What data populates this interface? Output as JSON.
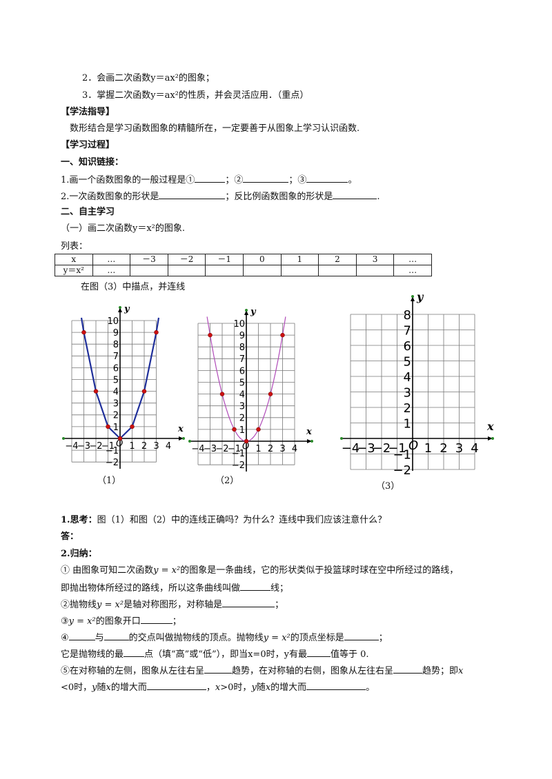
{
  "objectives": [
    "2．会画二次函数y＝ax²的图象；",
    "3．掌握二次函数y＝ax²的性质，并会灵活应用．（重点）"
  ],
  "study_method": {
    "heading": "【学法指导】",
    "text": "数形结合是学习函数图象的精髓所在，一定要善于从图象上学习认识函数."
  },
  "process": {
    "heading": "【学习过程】"
  },
  "part1": {
    "heading": "一、知识链接：",
    "q1_a": "1.画一个函数图象的一般过程是①",
    "q1_b": "；②",
    "q1_c": "；③",
    "q1_d": "。",
    "q2_a": "2.一次函数图象的形状是",
    "q2_b": "；反比例函数图象的形状是",
    "q2_c": "."
  },
  "part2": {
    "heading": "二、自主学习",
    "sub": "（一）画二次函数y＝x²的图象.",
    "table_label": "列表：",
    "table_header": [
      "x",
      "…",
      "－3",
      "－2",
      "－1",
      "0",
      "1",
      "2",
      "3",
      "…"
    ],
    "table_row2": [
      "y＝x²",
      "…",
      "",
      "",
      "",
      "",
      "",
      "",
      "",
      "…"
    ],
    "instruction": "在图（3）中描点，并连线"
  },
  "graphs": {
    "captions": [
      "（1）",
      "（2）",
      "（3）"
    ],
    "y_label": "y",
    "x_label": "x",
    "origin_label": "O",
    "small_x_ticks": [
      "−4",
      "−3",
      "−2",
      "−1",
      "1",
      "2",
      "3",
      "4"
    ],
    "small_y_ticks": [
      "10",
      "9",
      "8",
      "7",
      "6",
      "5",
      "4",
      "3",
      "2",
      "1",
      "−1",
      "−2"
    ],
    "large_x_ticks": [
      "−4",
      "−3",
      "−2",
      "−1",
      "1",
      "2",
      "3",
      "4"
    ],
    "large_y_ticks": [
      "8",
      "7",
      "6",
      "5",
      "4",
      "3",
      "2",
      "1",
      "−1",
      "−2"
    ]
  },
  "chart_data": [
    {
      "type": "line",
      "x": [
        -3.2,
        -3,
        -2,
        -1,
        0,
        1,
        2,
        3,
        3.2
      ],
      "y": [
        10.24,
        9,
        4,
        1,
        0,
        1,
        4,
        9,
        10.24
      ],
      "points": [
        [
          -3,
          9
        ],
        [
          -2,
          4
        ],
        [
          -1,
          1
        ],
        [
          0,
          0
        ],
        [
          1,
          1
        ],
        [
          2,
          4
        ],
        [
          3,
          9
        ]
      ],
      "xlim": [
        -4,
        4
      ],
      "ylim": [
        -2,
        10
      ],
      "grid": true,
      "colors": {
        "line": "#1f2f9a",
        "points": "#cc1111"
      }
    },
    {
      "type": "line",
      "points": [
        [
          -3,
          9
        ],
        [
          -2,
          4
        ],
        [
          -1,
          1
        ],
        [
          0,
          0
        ],
        [
          1,
          1
        ],
        [
          2,
          4
        ],
        [
          3,
          9
        ]
      ],
      "curve": "y=x^2",
      "xlim": [
        -4,
        4
      ],
      "ylim": [
        -2,
        10
      ],
      "grid": true,
      "colors": {
        "line": "#b04ab8",
        "points": "#cc1111"
      }
    },
    {
      "type": "scatter",
      "points": [],
      "xlim": [
        -4,
        4
      ],
      "ylim": [
        -2,
        8
      ],
      "grid": true
    }
  ],
  "think": {
    "q": "1.思考：",
    "q_text": "图（1）和图（2）中的连线正确吗？为什么？连线中我们应该注意什么？",
    "answer": "答："
  },
  "summary": {
    "heading": "2.归纳：",
    "l1_a": "① 由图象可知二次函数",
    "l1_b": "的图象是一条曲线，它的形状类似于投篮球时球在空中所经过的路线，",
    "l2_a": "即抛出物体所经过的路线，所以这条曲线叫做",
    "l2_b": "线；",
    "l3_a": "②抛物线",
    "l3_b": "是轴对称图形，对称轴是",
    "l3_c": "；",
    "l4_a": "③",
    "l4_b": "的图象开口",
    "l4_c": "；",
    "l5_a": "④",
    "l5_b": "与",
    "l5_c": "的交点叫做抛物线的顶点。抛物线",
    "l5_d": "的顶点坐标是",
    "l5_e": "；",
    "l6_a": "它是抛物线的最",
    "l6_b": "点（填“高”或“低”），即当x=0时，y有最",
    "l6_c": "值等于 0.",
    "l7_a": "⑤在对称轴的左侧，图象从左往右呈",
    "l7_b": "趋势，在对称轴的右侧，图象从左往右呈",
    "l7_c": "趋势；即",
    "l8_a": "<0时，",
    "l8_b": "随",
    "l8_c": "的增大而",
    "l8_d": "，",
    "l8_e": ">0时，",
    "l8_f": "随",
    "l8_g": "的增大而",
    "l8_h": "。",
    "formula": "y = x²",
    "var_x": "x",
    "var_y": "y"
  }
}
